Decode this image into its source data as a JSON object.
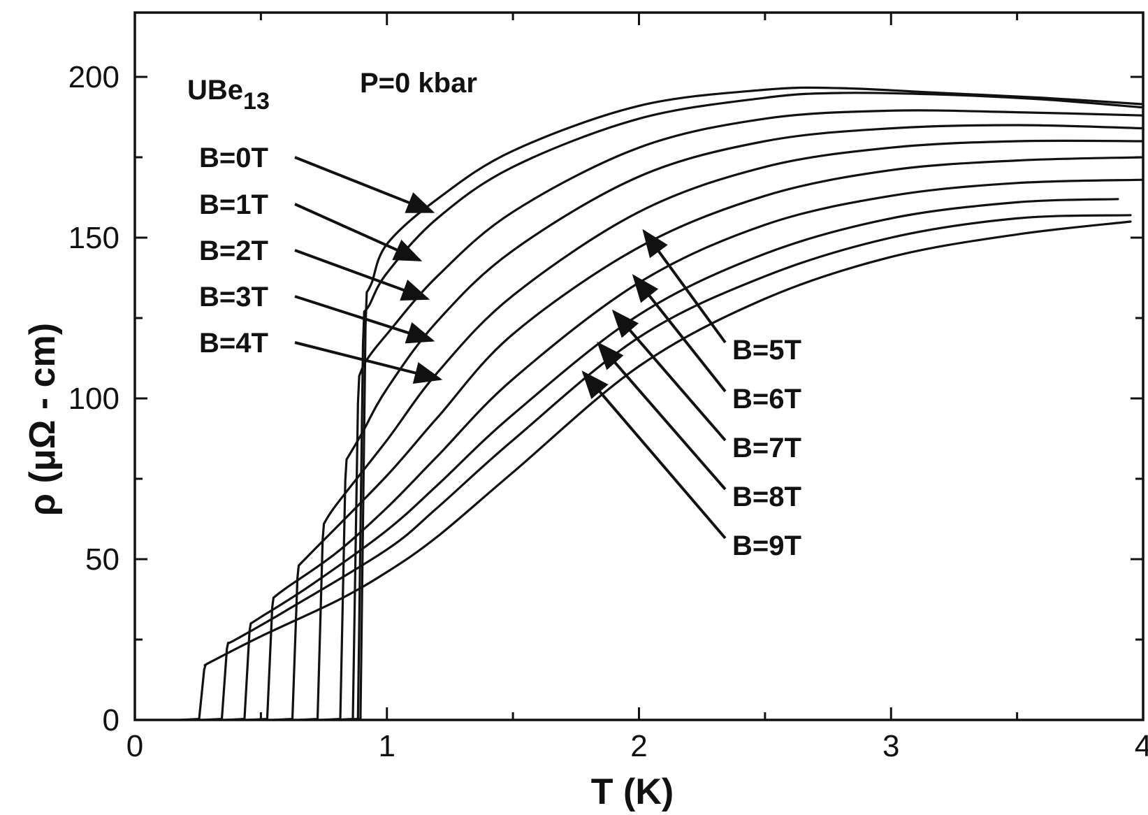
{
  "chart_data": {
    "type": "line",
    "title": "",
    "xlabel": "T (K)",
    "ylabel": "ρ (μΩ - cm)",
    "xlim": [
      0,
      4
    ],
    "ylim": [
      0,
      220
    ],
    "x_ticks": [
      0,
      1,
      2,
      3,
      4
    ],
    "y_ticks": [
      0,
      50,
      100,
      150,
      200
    ],
    "grid": false,
    "annotations": {
      "material_main": "UBe",
      "material_sub": "13",
      "pressure": "P=0 kbar"
    },
    "series": [
      {
        "name": "B=0T",
        "tc": 0.92,
        "rho_tc": 133,
        "points": [
          [
            0.94,
            136
          ],
          [
            1.0,
            148
          ],
          [
            1.2,
            162
          ],
          [
            1.5,
            177
          ],
          [
            2.0,
            191
          ],
          [
            2.5,
            196
          ],
          [
            2.8,
            196.5
          ],
          [
            3.2,
            195
          ],
          [
            3.6,
            193.5
          ],
          [
            4.0,
            191.5
          ]
        ]
      },
      {
        "name": "B=1T",
        "tc": 0.91,
        "rho_tc": 127,
        "points": [
          [
            0.93,
            129
          ],
          [
            1.0,
            139
          ],
          [
            1.2,
            156
          ],
          [
            1.5,
            172
          ],
          [
            2.0,
            187
          ],
          [
            2.5,
            193.5
          ],
          [
            2.8,
            195
          ],
          [
            3.2,
            194.5
          ],
          [
            3.6,
            193
          ],
          [
            4.0,
            190.5
          ]
        ]
      },
      {
        "name": "B=2T",
        "tc": 0.89,
        "rho_tc": 107,
        "points": [
          [
            0.92,
            112
          ],
          [
            1.0,
            120
          ],
          [
            1.2,
            138
          ],
          [
            1.5,
            158
          ],
          [
            2.0,
            178
          ],
          [
            2.5,
            187
          ],
          [
            3.0,
            189.5
          ],
          [
            3.5,
            189
          ],
          [
            4.0,
            188
          ]
        ]
      },
      {
        "name": "B=3T",
        "tc": 0.84,
        "rho_tc": 81,
        "points": [
          [
            0.9,
            89
          ],
          [
            1.0,
            103
          ],
          [
            1.2,
            124
          ],
          [
            1.5,
            146
          ],
          [
            2.0,
            169
          ],
          [
            2.5,
            180
          ],
          [
            3.0,
            184
          ],
          [
            3.5,
            185
          ],
          [
            4.0,
            184
          ]
        ]
      },
      {
        "name": "B=4T",
        "tc": 0.75,
        "rho_tc": 61,
        "points": [
          [
            0.8,
            67
          ],
          [
            1.0,
            87
          ],
          [
            1.2,
            108
          ],
          [
            1.5,
            132
          ],
          [
            2.0,
            158
          ],
          [
            2.5,
            172
          ],
          [
            3.0,
            178
          ],
          [
            3.5,
            180
          ],
          [
            4.0,
            180
          ]
        ]
      },
      {
        "name": "B=5T",
        "tc": 0.65,
        "rho_tc": 48,
        "points": [
          [
            0.7,
            52
          ],
          [
            1.0,
            76
          ],
          [
            1.2,
            94
          ],
          [
            1.5,
            120
          ],
          [
            2.0,
            147
          ],
          [
            2.5,
            163
          ],
          [
            3.0,
            171
          ],
          [
            3.5,
            174
          ],
          [
            4.0,
            175
          ]
        ]
      },
      {
        "name": "B=6T",
        "tc": 0.55,
        "rho_tc": 38,
        "points": [
          [
            0.6,
            41
          ],
          [
            0.8,
            52
          ],
          [
            1.0,
            66
          ],
          [
            1.2,
            82
          ],
          [
            1.5,
            106
          ],
          [
            2.0,
            136
          ],
          [
            2.5,
            154
          ],
          [
            3.0,
            163
          ],
          [
            3.5,
            167
          ],
          [
            4.0,
            168
          ]
        ]
      },
      {
        "name": "B=7T",
        "tc": 0.46,
        "rho_tc": 30,
        "points": [
          [
            0.5,
            32
          ],
          [
            0.7,
            42
          ],
          [
            1.0,
            59
          ],
          [
            1.2,
            73
          ],
          [
            1.5,
            95
          ],
          [
            2.0,
            126
          ],
          [
            2.5,
            145
          ],
          [
            3.0,
            156
          ],
          [
            3.5,
            161
          ],
          [
            3.9,
            162
          ]
        ]
      },
      {
        "name": "B=8T",
        "tc": 0.37,
        "rho_tc": 24,
        "points": [
          [
            0.4,
            25
          ],
          [
            0.6,
            34
          ],
          [
            1.0,
            53
          ],
          [
            1.2,
            66
          ],
          [
            1.5,
            87
          ],
          [
            2.0,
            119
          ],
          [
            2.5,
            138
          ],
          [
            3.0,
            150
          ],
          [
            3.5,
            156
          ],
          [
            3.95,
            157
          ]
        ]
      },
      {
        "name": "B=9T",
        "tc": 0.28,
        "rho_tc": 17,
        "points": [
          [
            0.3,
            18
          ],
          [
            0.5,
            26
          ],
          [
            0.8,
            37
          ],
          [
            1.0,
            46
          ],
          [
            1.2,
            57
          ],
          [
            1.5,
            77
          ],
          [
            2.0,
            110
          ],
          [
            2.5,
            131
          ],
          [
            3.0,
            144
          ],
          [
            3.5,
            151
          ],
          [
            3.95,
            155
          ]
        ]
      }
    ],
    "labels": {
      "left": [
        "B=0T",
        "B=1T",
        "B=2T",
        "B=3T",
        "B=4T"
      ],
      "right": [
        "B=5T",
        "B=6T",
        "B=7T",
        "B=8T",
        "B=9T"
      ]
    }
  }
}
